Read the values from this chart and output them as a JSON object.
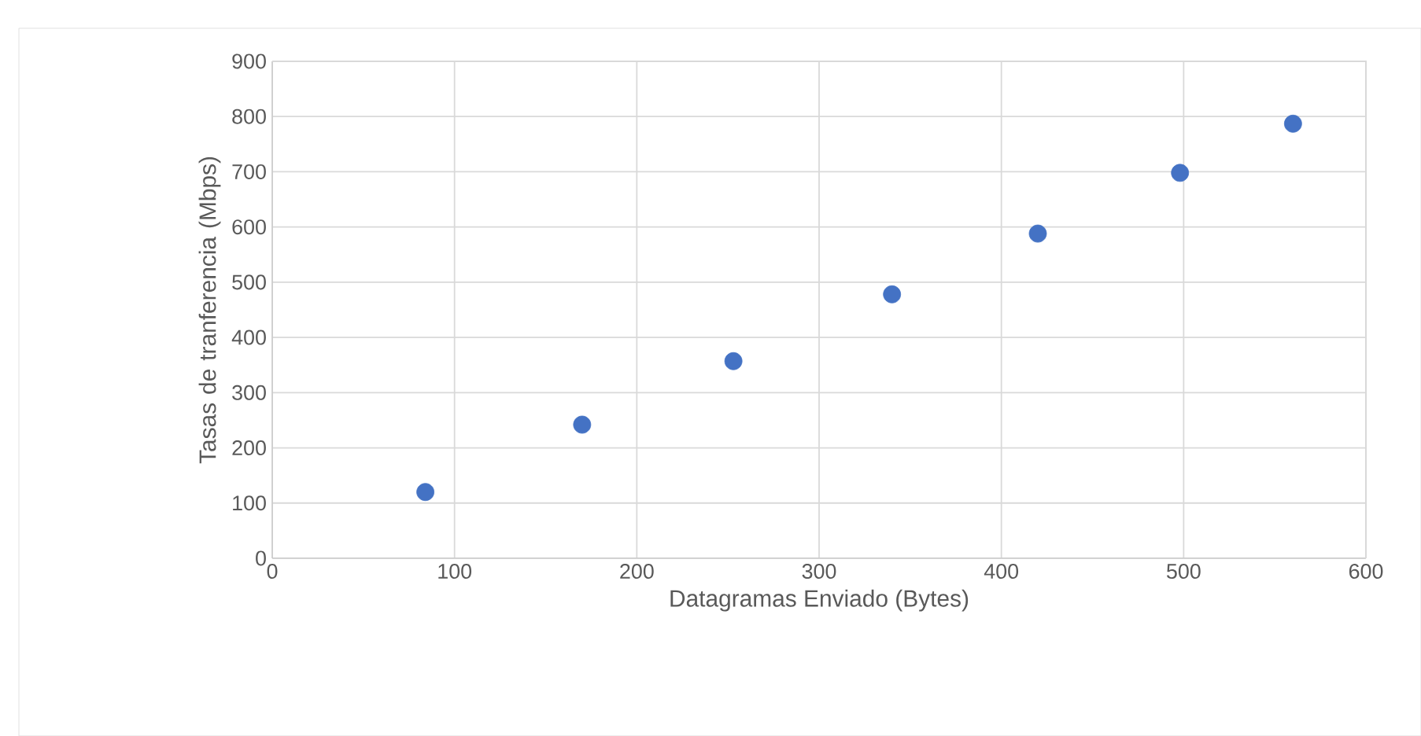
{
  "chart_data": {
    "type": "scatter",
    "xlabel": "Datagramas Enviado (Bytes)",
    "ylabel": "Tasas de tranferencia (Mbps)",
    "x": [
      84,
      170,
      253,
      340,
      420,
      498,
      560
    ],
    "series": [
      {
        "color": "#4472c4",
        "values": [
          120,
          242,
          357,
          478,
          588,
          698,
          787
        ]
      }
    ],
    "xlim": [
      0,
      600
    ],
    "xticks": [
      0,
      100,
      200,
      300,
      400,
      500,
      600
    ],
    "ylim": [
      0,
      900
    ],
    "yticks": [
      0,
      100,
      200,
      300,
      400,
      500,
      600,
      700,
      800,
      900
    ],
    "grid": true,
    "marker": "circle"
  }
}
